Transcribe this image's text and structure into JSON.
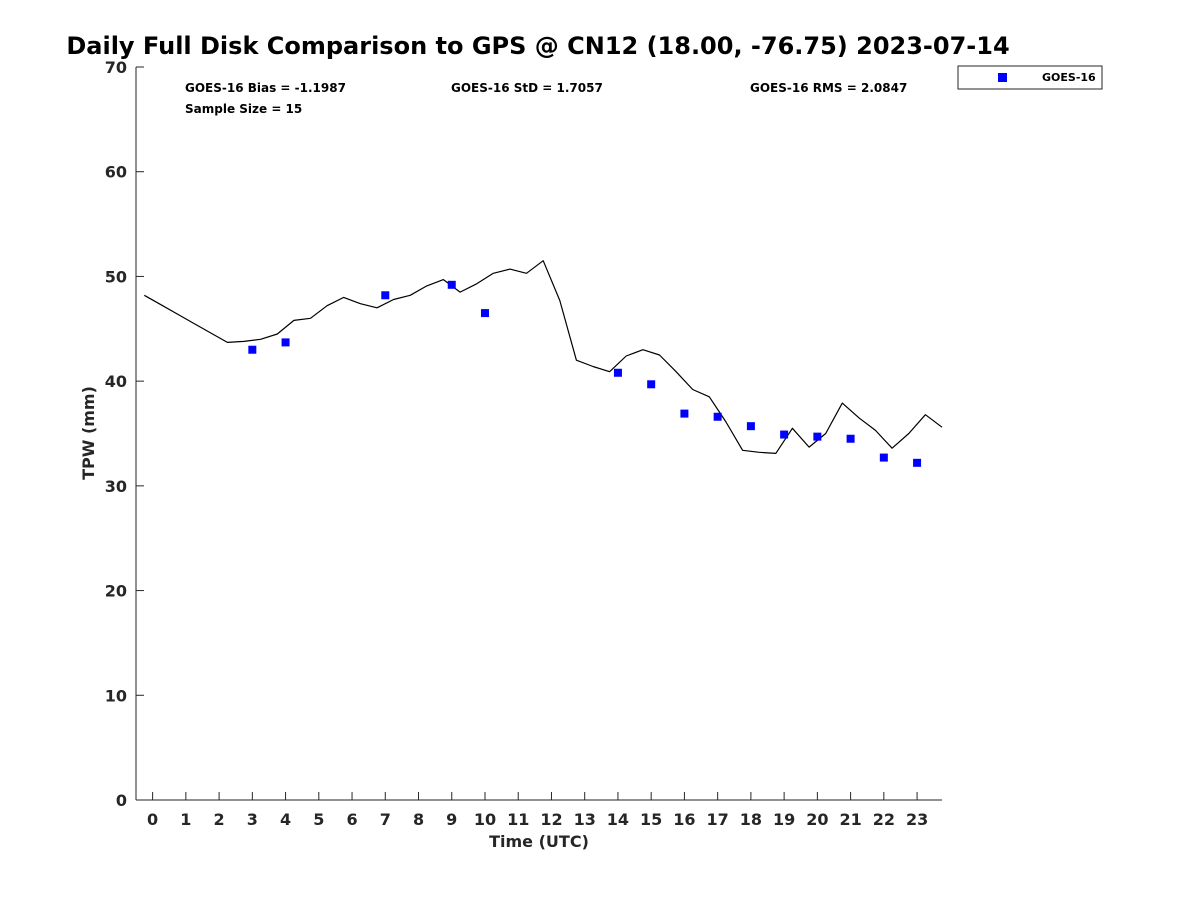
{
  "chart_data": {
    "type": "scatter",
    "title": "Daily Full Disk Comparison to GPS @ CN12 (18.00, -76.75) 2023-07-14",
    "xlabel": "Time (UTC)",
    "ylabel": "TPW (mm)",
    "xlim": [
      -0.5,
      23.75
    ],
    "ylim": [
      0,
      70
    ],
    "x_ticks": [
      0,
      1,
      2,
      3,
      4,
      5,
      6,
      7,
      8,
      9,
      10,
      11,
      12,
      13,
      14,
      15,
      16,
      17,
      18,
      19,
      20,
      21,
      22,
      23
    ],
    "y_ticks": [
      0,
      10,
      20,
      30,
      40,
      50,
      60,
      70
    ],
    "grid": false,
    "legend_position": "top-right outside",
    "stats": {
      "bias": "GOES-16 Bias = -1.1987",
      "std": "GOES-16 StD = 1.7057",
      "rms": "GOES-16 RMS = 2.0847",
      "sample": "Sample Size = 15"
    },
    "series": [
      {
        "name": "GOES-16",
        "kind": "scatter",
        "marker": "square",
        "color": "#0000ff",
        "x": [
          3,
          4,
          7,
          9,
          10,
          14,
          15,
          16,
          17,
          18,
          19,
          20,
          21,
          22,
          23
        ],
        "y": [
          43.0,
          43.7,
          48.2,
          49.2,
          46.5,
          40.8,
          39.7,
          36.9,
          36.6,
          35.7,
          34.9,
          34.7,
          34.5,
          32.7,
          32.2
        ]
      },
      {
        "kind": "line",
        "color": "#000000",
        "x": [
          -0.25,
          0.25,
          0.75,
          1.25,
          1.75,
          2.25,
          2.75,
          3.25,
          3.75,
          4.25,
          4.75,
          5.25,
          5.75,
          6.25,
          6.75,
          7.25,
          7.75,
          8.25,
          8.75,
          9.25,
          9.75,
          10.25,
          10.75,
          11.25,
          11.75,
          12.25,
          12.75,
          13.25,
          13.75,
          14.25,
          14.75,
          15.25,
          15.75,
          16.25,
          16.75,
          17.25,
          17.75,
          18.25,
          18.75,
          19.25,
          19.75,
          20.25,
          20.75,
          21.25,
          21.75,
          22.25,
          22.75,
          23.25,
          23.75
        ],
        "y": [
          48.2,
          47.3,
          46.4,
          45.5,
          44.6,
          43.7,
          43.8,
          44.0,
          44.5,
          45.8,
          46.0,
          47.2,
          48.0,
          47.4,
          47.0,
          47.8,
          48.2,
          49.1,
          49.7,
          48.5,
          49.3,
          50.3,
          50.7,
          50.3,
          51.5,
          47.7,
          42.0,
          41.4,
          40.9,
          42.4,
          43.0,
          42.5,
          40.9,
          39.2,
          38.5,
          36.1,
          33.4,
          33.2,
          33.1,
          35.5,
          33.7,
          35.0,
          37.9,
          36.5,
          35.3,
          33.6,
          35.0,
          36.8,
          35.6
        ]
      }
    ]
  }
}
